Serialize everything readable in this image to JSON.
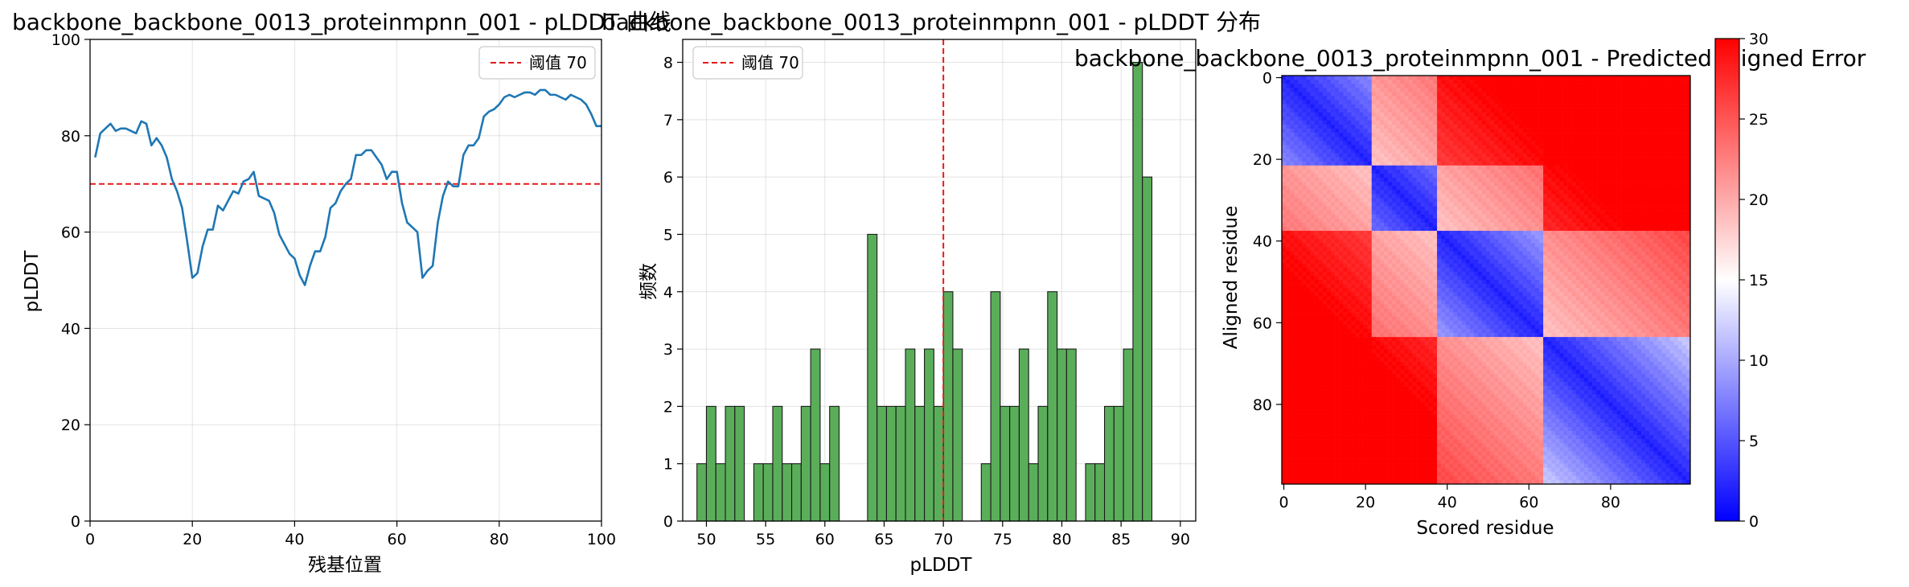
{
  "chart_data": [
    {
      "type": "line",
      "title": "backbone_backbone_0013_proteinmpnn_001 - pLDDT 曲线",
      "xlabel": "残基位置",
      "ylabel": "pLDDT",
      "xlim": [
        0,
        100
      ],
      "ylim": [
        0,
        100
      ],
      "xticks": [
        0,
        20,
        40,
        60,
        80,
        100
      ],
      "yticks": [
        0,
        20,
        40,
        60,
        80,
        100
      ],
      "grid": true,
      "legend_position": "top-right",
      "threshold": {
        "value": 70,
        "label": "阈值 70",
        "color": "#e31a1c"
      },
      "series": [
        {
          "color": "#1f77b4",
          "x": [
            1,
            2,
            3,
            4,
            5,
            6,
            7,
            8,
            9,
            10,
            11,
            12,
            13,
            14,
            15,
            16,
            17,
            18,
            19,
            20,
            21,
            22,
            23,
            24,
            25,
            26,
            27,
            28,
            29,
            30,
            31,
            32,
            33,
            34,
            35,
            36,
            37,
            38,
            39,
            40,
            41,
            42,
            43,
            44,
            45,
            46,
            47,
            48,
            49,
            50,
            51,
            52,
            53,
            54,
            55,
            56,
            57,
            58,
            59,
            60,
            61,
            62,
            63,
            64,
            65,
            66,
            67,
            68,
            69,
            70,
            71,
            72,
            73,
            74,
            75,
            76,
            77,
            78,
            79,
            80,
            81,
            82,
            83,
            84,
            85,
            86,
            87,
            88,
            89,
            90,
            91,
            92,
            93,
            94,
            95,
            96,
            97,
            98,
            99,
            100
          ],
          "values": [
            75.5,
            80.5,
            81.5,
            82.5,
            81.0,
            81.5,
            81.5,
            81.0,
            80.5,
            83.0,
            82.5,
            78.0,
            79.5,
            78.0,
            75.5,
            71.0,
            68.5,
            65.0,
            58.0,
            50.5,
            51.5,
            57.0,
            60.5,
            60.5,
            65.5,
            64.5,
            66.5,
            68.5,
            68.0,
            70.5,
            71.0,
            72.5,
            67.5,
            67.0,
            66.5,
            64.0,
            59.5,
            57.5,
            55.5,
            54.5,
            51.0,
            49.0,
            53.0,
            56.0,
            56.0,
            59.0,
            65.0,
            66.0,
            68.5,
            70.0,
            71.0,
            76.0,
            76.0,
            77.0,
            77.0,
            75.5,
            74.0,
            71.0,
            72.5,
            72.5,
            66.0,
            62.0,
            61.0,
            60.0,
            50.5,
            52.0,
            53.0,
            62.0,
            67.5,
            70.5,
            69.5,
            69.5,
            76.0,
            78.0,
            78.0,
            79.5,
            84.0,
            85.0,
            85.5,
            86.5,
            88.0,
            88.5,
            88.0,
            88.5,
            89.0,
            89.0,
            88.5,
            89.5,
            89.5,
            88.5,
            88.5,
            88.0,
            87.5,
            88.5,
            88.0,
            87.5,
            86.5,
            84.5,
            82.0,
            82.0
          ]
        }
      ]
    },
    {
      "type": "bar",
      "title": "backbone_backbone_0013_proteinmpnn_001 - pLDDT 分布",
      "xlabel": "pLDDT",
      "ylabel": "频数",
      "xlim": [
        48.0,
        91.3
      ],
      "ylim": [
        0,
        8.4
      ],
      "xticks": [
        50,
        55,
        60,
        65,
        70,
        75,
        80,
        85,
        90
      ],
      "yticks": [
        0,
        1,
        2,
        3,
        4,
        5,
        6,
        7,
        8
      ],
      "grid": true,
      "legend_position": "top-left",
      "threshold": {
        "value": 70,
        "label": "阈值 70",
        "color": "#e31a1c"
      },
      "bin_width": 0.8,
      "bin_start": 49.2,
      "color": "#5aae5a",
      "counts": [
        1,
        2,
        1,
        2,
        2,
        0,
        1,
        1,
        2,
        1,
        1,
        2,
        3,
        1,
        2,
        0,
        0,
        0,
        5,
        2,
        2,
        2,
        3,
        2,
        3,
        2,
        4,
        3,
        0,
        0,
        1,
        4,
        2,
        2,
        3,
        1,
        2,
        4,
        3,
        3,
        0,
        1,
        1,
        2,
        2,
        3,
        8,
        6
      ]
    },
    {
      "type": "heatmap",
      "title": "backbone_backbone_0013_proteinmpnn_001 - Predicted Aligned Error",
      "xlabel": "Scored residue",
      "ylabel": "Aligned residue",
      "size": 100,
      "xticks": [
        0,
        20,
        40,
        60,
        80
      ],
      "yticks": [
        0,
        20,
        40,
        60,
        80
      ],
      "colorscale": "bwr",
      "vmin": 0,
      "vmax": 30,
      "colorbar_ticks": [
        0,
        5,
        10,
        15,
        20,
        25,
        30
      ],
      "domain_breaks": [
        22,
        38,
        64
      ]
    }
  ]
}
